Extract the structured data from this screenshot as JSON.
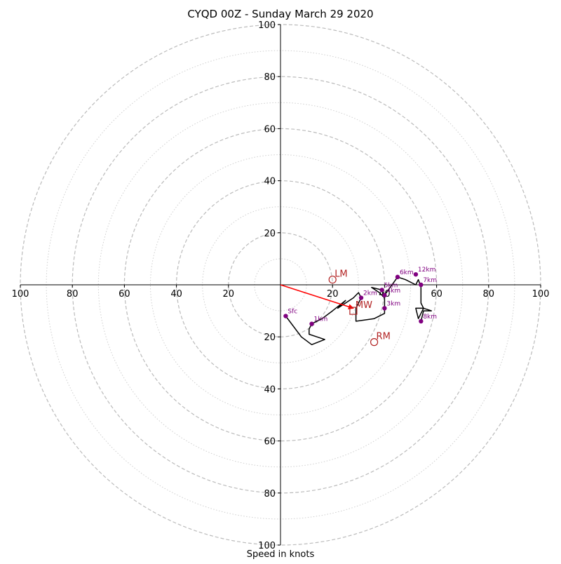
{
  "chart_data": {
    "type": "hodograph",
    "title": "CYQD 00Z - Sunday March 29 2020",
    "xlabel": "Speed in knots",
    "ring_labels": [
      "20",
      "40",
      "60",
      "80",
      "100"
    ],
    "rings_major": [
      20,
      40,
      60,
      80,
      100
    ],
    "rings_minor": [
      10,
      30,
      50,
      70,
      90
    ],
    "max_speed": 100,
    "colors": {
      "trace": "#000000",
      "height_marker": "#800080",
      "storm_motion": "#b22222",
      "shear_vector": "#ff0000",
      "ring": "#bbbbbb"
    },
    "hodograph_trace": [
      [
        2,
        -12
      ],
      [
        8,
        -20
      ],
      [
        12,
        -23
      ],
      [
        17,
        -21
      ],
      [
        14,
        -20
      ],
      [
        11,
        -19
      ],
      [
        11,
        -17
      ],
      [
        12,
        -15
      ],
      [
        16,
        -13
      ],
      [
        20,
        -10
      ],
      [
        25,
        -6
      ],
      [
        22,
        -9
      ],
      [
        28,
        -5
      ],
      [
        30,
        -3
      ],
      [
        31,
        -5
      ],
      [
        30,
        -7
      ],
      [
        29,
        -9
      ],
      [
        29,
        -14
      ],
      [
        36,
        -13
      ],
      [
        40,
        -11
      ],
      [
        40,
        -9
      ],
      [
        40,
        -7
      ],
      [
        40,
        -5
      ],
      [
        38,
        -3
      ],
      [
        35,
        -1
      ],
      [
        39,
        -2
      ],
      [
        40,
        -4
      ],
      [
        45,
        3
      ],
      [
        48,
        2
      ],
      [
        52,
        0
      ],
      [
        53,
        2
      ],
      [
        54,
        -1
      ],
      [
        54,
        -3
      ],
      [
        54,
        -7
      ],
      [
        55,
        -9
      ],
      [
        54,
        -11
      ],
      [
        53,
        -13
      ],
      [
        52,
        -9
      ],
      [
        55,
        -9
      ],
      [
        58,
        -10
      ],
      [
        55,
        -10
      ],
      [
        54,
        -14
      ]
    ],
    "height_markers": [
      {
        "label": "Sfc",
        "u": 2,
        "v": -12
      },
      {
        "label": "1km",
        "u": 12,
        "v": -15
      },
      {
        "label": "2km",
        "u": 31,
        "v": -5
      },
      {
        "label": "3km",
        "u": 40,
        "v": -9
      },
      {
        "label": "4km",
        "u": 40,
        "v": -4
      },
      {
        "label": "5km",
        "u": 39,
        "v": -2
      },
      {
        "label": "6km",
        "u": 45,
        "v": 3
      },
      {
        "label": "7km",
        "u": 54,
        "v": 0
      },
      {
        "label": "8km",
        "u": 54,
        "v": -14
      },
      {
        "label": "12km",
        "u": 52,
        "v": 4
      }
    ],
    "storm_motion": [
      {
        "label": "LM",
        "u": 20,
        "v": 2,
        "marker": "circle"
      },
      {
        "label": "MW",
        "u": 28,
        "v": -10,
        "marker": "square"
      },
      {
        "label": "RM",
        "u": 36,
        "v": -22,
        "marker": "circle"
      }
    ],
    "shear_vector": {
      "u": 28,
      "v": -9
    }
  }
}
